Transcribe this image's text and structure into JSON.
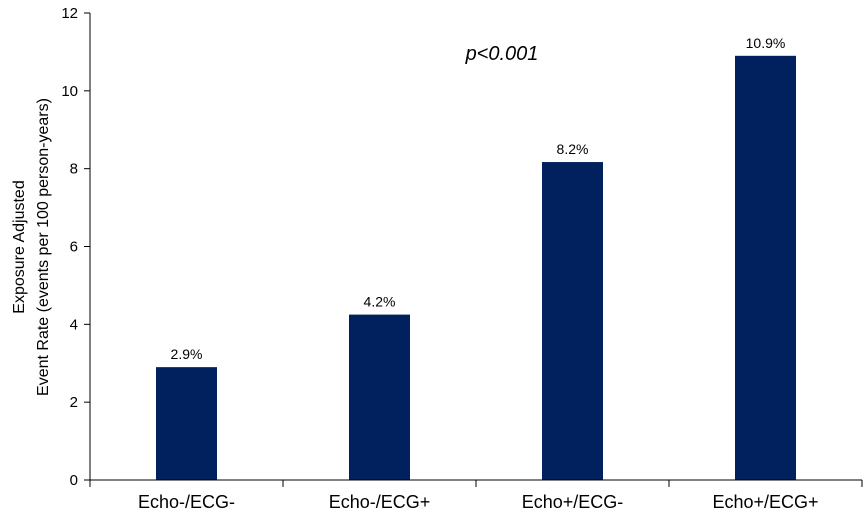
{
  "chart_data": {
    "type": "bar",
    "categories": [
      "Echo-/ECG-",
      "Echo-/ECG+",
      "Echo+/ECG-",
      "Echo+/ECG+"
    ],
    "values": [
      2.9,
      4.25,
      8.17,
      10.9
    ],
    "data_labels": [
      "2.9%",
      "4.2%",
      "8.2%",
      "10.9%"
    ],
    "title": "",
    "xlabel": "",
    "ylabel_lines": [
      "Exposure Adjusted",
      "Event Rate (events per 100 person-years)"
    ],
    "ylim": [
      0,
      12
    ],
    "yticks": [
      0,
      2,
      4,
      6,
      8,
      10,
      12
    ],
    "ytick_labels": [
      "0",
      "2",
      "4",
      "6",
      "8",
      "10",
      "12"
    ],
    "annotation": "p<0.001",
    "grid": false,
    "legend": "none",
    "colors": {
      "bar": "#00215e",
      "axis": "#000000"
    }
  }
}
